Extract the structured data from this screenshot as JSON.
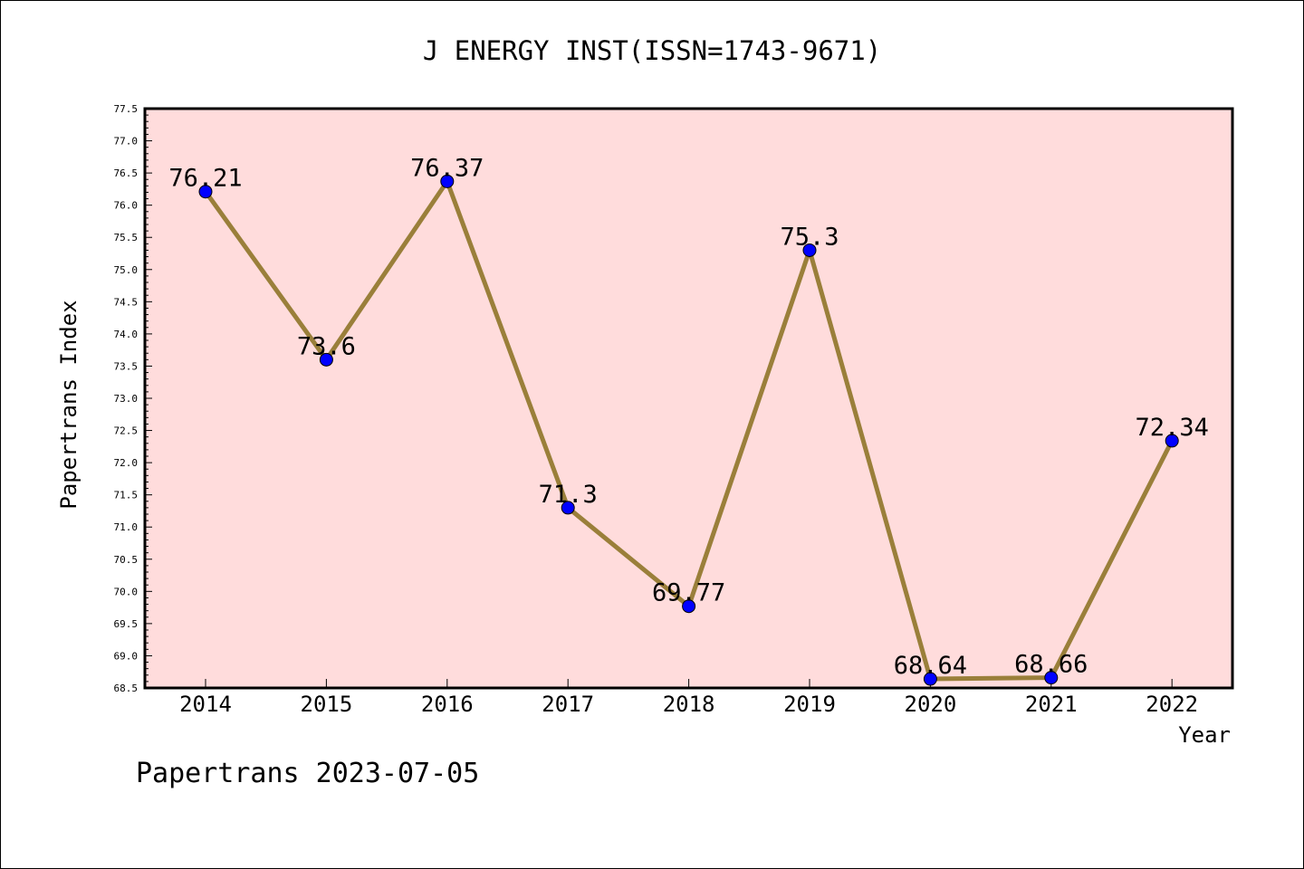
{
  "chart_data": {
    "type": "line",
    "title": "J ENERGY INST(ISSN=1743-9671)",
    "xlabel": "Year",
    "ylabel": "Papertrans Index",
    "categories": [
      "2014",
      "2015",
      "2016",
      "2017",
      "2018",
      "2019",
      "2020",
      "2021",
      "2022"
    ],
    "values": [
      76.21,
      73.6,
      76.37,
      71.3,
      69.77,
      75.3,
      68.64,
      68.66,
      72.34
    ],
    "value_labels": [
      "76.21",
      "73.6",
      "76.37",
      "71.3",
      "69.77",
      "75.3",
      "68.64",
      "68.66",
      "72.34"
    ],
    "ylim": [
      68.5,
      77.5
    ],
    "yticks": [
      "68.5",
      "69.0",
      "69.5",
      "70.0",
      "70.5",
      "71.0",
      "71.5",
      "72.0",
      "72.5",
      "73.0",
      "73.5",
      "74.0",
      "74.5",
      "75.0",
      "75.5",
      "76.0",
      "76.5",
      "77.0",
      "77.5"
    ],
    "grid": false,
    "line_color": "#9a7f3a",
    "marker_color": "#0000ff",
    "plot_background": "#ffdcdc"
  },
  "footer": "Papertrans 2023-07-05"
}
